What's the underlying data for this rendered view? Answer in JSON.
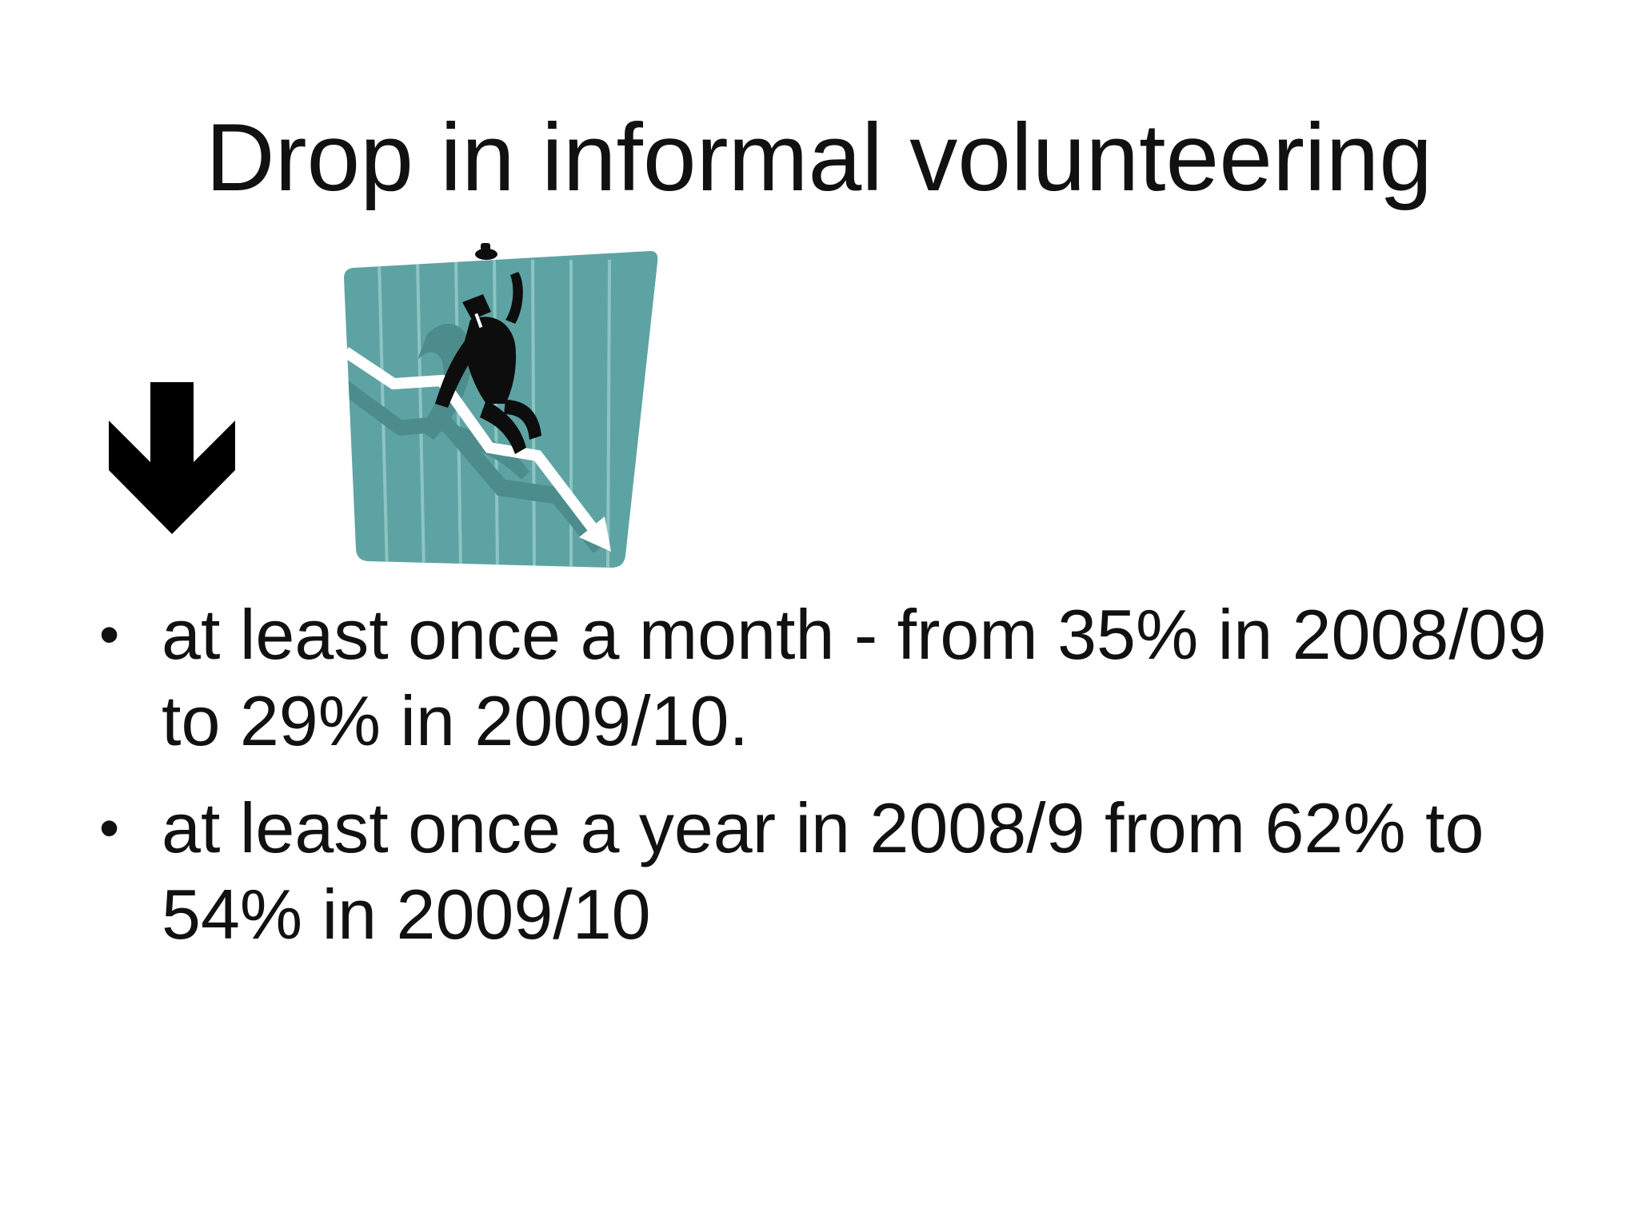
{
  "slide": {
    "title": "Drop in informal volunteering",
    "icons": {
      "arrow": "down-arrow-icon",
      "clipart": "falling-businessman-chart-icon"
    },
    "colors": {
      "clipart_background": "#5ea3a3",
      "clipart_stripes": "#8cc4c4",
      "figure": "#0d0d0d"
    },
    "bullets": [
      {
        "marker": "•",
        "text": "at least once a month - from 35% in 2008/09 to 29% in 2009/10."
      },
      {
        "marker": "•",
        "text": "at least once a year in 2008/9 from 62% to 54% in 2009/10"
      }
    ]
  }
}
